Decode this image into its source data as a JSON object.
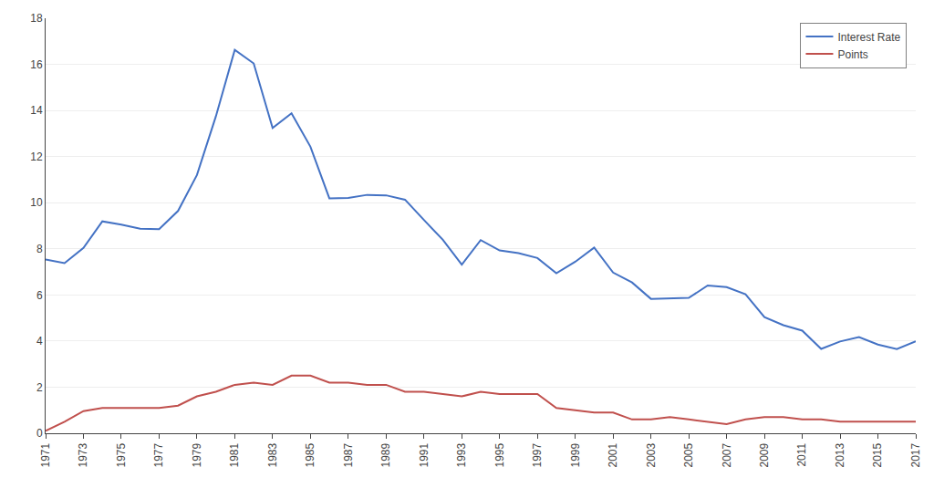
{
  "chart_data": {
    "type": "line",
    "x": [
      1971,
      1972,
      1973,
      1974,
      1975,
      1976,
      1977,
      1978,
      1979,
      1980,
      1981,
      1982,
      1983,
      1984,
      1985,
      1986,
      1987,
      1988,
      1989,
      1990,
      1991,
      1992,
      1993,
      1994,
      1995,
      1996,
      1997,
      1998,
      1999,
      2000,
      2001,
      2002,
      2003,
      2004,
      2005,
      2006,
      2007,
      2008,
      2009,
      2010,
      2011,
      2012,
      2013,
      2014,
      2015,
      2016,
      2017
    ],
    "series": [
      {
        "name": "Interest Rate",
        "color": "#4472C4",
        "values": [
          7.54,
          7.38,
          8.04,
          9.19,
          9.05,
          8.87,
          8.85,
          9.64,
          11.2,
          13.74,
          16.63,
          16.04,
          13.24,
          13.88,
          12.43,
          10.19,
          10.21,
          10.34,
          10.32,
          10.13,
          9.25,
          8.39,
          7.31,
          8.38,
          7.93,
          7.81,
          7.6,
          6.94,
          7.44,
          8.05,
          6.97,
          6.54,
          5.83,
          5.84,
          5.87,
          6.41,
          6.34,
          6.03,
          5.04,
          4.69,
          4.45,
          3.66,
          3.98,
          4.17,
          3.85,
          3.65,
          3.99
        ]
      },
      {
        "name": "Points",
        "color": "#C0504D",
        "values": [
          0.1,
          0.5,
          0.96,
          1.1,
          1.1,
          1.1,
          1.1,
          1.2,
          1.6,
          1.8,
          2.1,
          2.2,
          2.1,
          2.5,
          2.5,
          2.2,
          2.2,
          2.1,
          2.1,
          1.8,
          1.8,
          1.7,
          1.6,
          1.8,
          1.7,
          1.7,
          1.7,
          1.1,
          1.0,
          0.9,
          0.9,
          0.6,
          0.6,
          0.7,
          0.6,
          0.5,
          0.4,
          0.6,
          0.7,
          0.7,
          0.6,
          0.6,
          0.5,
          0.5,
          0.5,
          0.5,
          0.5
        ]
      }
    ],
    "xlim": [
      1971,
      2017
    ],
    "xticks": [
      1971,
      1973,
      1975,
      1977,
      1979,
      1981,
      1983,
      1985,
      1987,
      1989,
      1991,
      1993,
      1995,
      1997,
      1999,
      2001,
      2003,
      2005,
      2007,
      2009,
      2011,
      2013,
      2015,
      2017
    ],
    "ylim": [
      0,
      18
    ],
    "yticks": [
      0,
      2,
      4,
      6,
      8,
      10,
      12,
      14,
      16,
      18
    ],
    "grid": true,
    "legend": "upper right"
  }
}
